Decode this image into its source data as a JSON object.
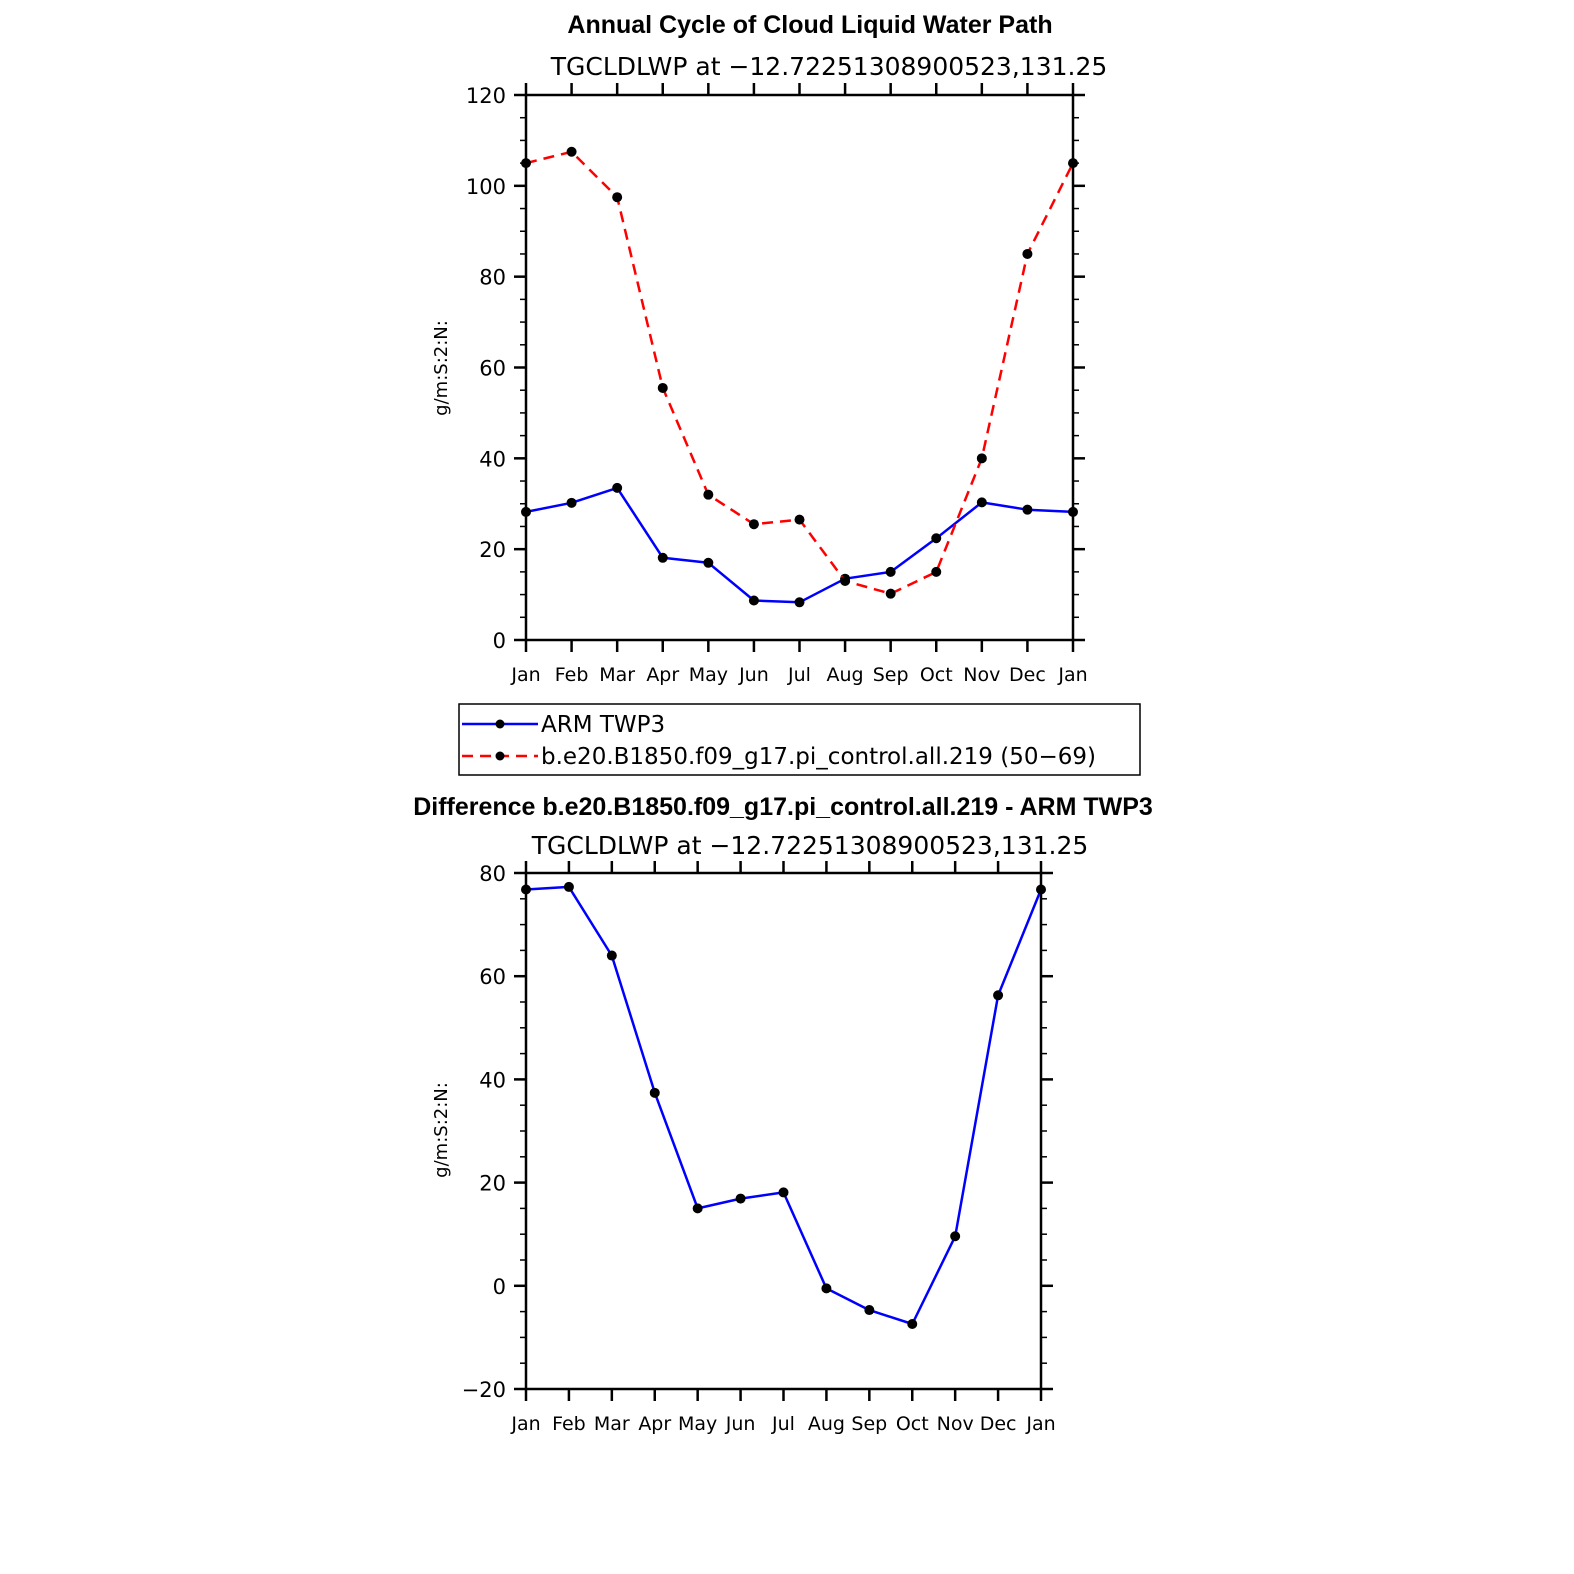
{
  "chart_data": [
    {
      "type": "line",
      "title": "Annual Cycle of Cloud Liquid Water Path",
      "subtitle": "TGCLDLWP at −12.72251308900523,131.25",
      "ylabel": "g/m:S:2:N:",
      "xlabel": "",
      "ylim": [
        0,
        120
      ],
      "yticks": [
        "0",
        "20",
        "40",
        "60",
        "80",
        "100",
        "120"
      ],
      "categories": [
        "Jan",
        "Feb",
        "Mar",
        "Apr",
        "May",
        "Jun",
        "Jul",
        "Aug",
        "Sep",
        "Oct",
        "Nov",
        "Dec",
        "Jan"
      ],
      "grid": false,
      "legend_position": "bottom",
      "series": [
        {
          "name": "ARM TWP3",
          "color": "#0000ff",
          "dash": "solid",
          "values": [
            28.2,
            30.2,
            33.5,
            18.1,
            17.0,
            8.7,
            8.3,
            13.5,
            15.0,
            22.4,
            30.3,
            28.7,
            28.2
          ]
        },
        {
          "name": "b.e20.B1850.f09_g17.pi_control.all.219 (50−69)",
          "color": "#ff0000",
          "dash": "dashed",
          "values": [
            105.0,
            107.5,
            97.5,
            55.5,
            32.0,
            25.5,
            26.5,
            13.0,
            10.2,
            15.0,
            40.0,
            85.0,
            105.0
          ]
        }
      ]
    },
    {
      "type": "line",
      "title": "Difference b.e20.B1850.f09_g17.pi_control.all.219 - ARM TWP3",
      "subtitle": "TGCLDLWP at −12.72251308900523,131.25",
      "ylabel": "g/m:S:2:N:",
      "xlabel": "",
      "ylim": [
        -20,
        80
      ],
      "yticks": [
        "−20",
        "0",
        "20",
        "40",
        "60",
        "80"
      ],
      "categories": [
        "Jan",
        "Feb",
        "Mar",
        "Apr",
        "May",
        "Jun",
        "Jul",
        "Aug",
        "Sep",
        "Oct",
        "Nov",
        "Dec",
        "Jan"
      ],
      "grid": false,
      "series": [
        {
          "color": "#0000ff",
          "dash": "solid",
          "values": [
            76.8,
            77.3,
            64.0,
            37.4,
            15.0,
            16.9,
            18.1,
            -0.5,
            -4.7,
            -7.4,
            9.6,
            56.3,
            76.8
          ]
        }
      ]
    }
  ]
}
